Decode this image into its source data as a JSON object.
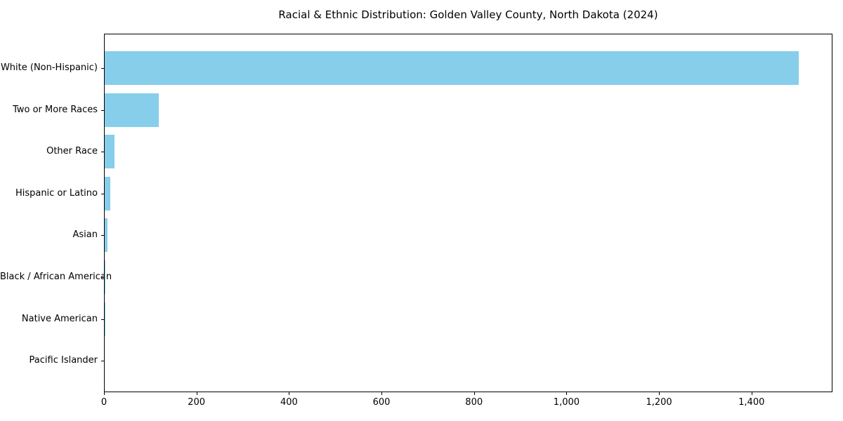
{
  "figure": {
    "background": "#ffffff"
  },
  "chart_data": {
    "type": "bar",
    "orientation": "horizontal",
    "title": "Racial & Ethnic Distribution: Golden Valley County, North Dakota (2024)",
    "categories": [
      "White (Non-Hispanic)",
      "Two or More Races",
      "Other Race",
      "Hispanic or Latino",
      "Asian",
      "Black / African American",
      "Native American",
      "Pacific Islander"
    ],
    "values": [
      1500,
      117,
      21,
      12,
      6,
      2,
      1,
      0
    ],
    "bar_color": "#87CEEB",
    "axis_color": "#000000",
    "xlabel": "",
    "ylabel": "",
    "xlim": [
      0,
      1575
    ],
    "x_ticks": [
      0,
      200,
      400,
      600,
      800,
      1000,
      1200,
      1400
    ],
    "x_tick_labels": [
      "0",
      "200",
      "400",
      "600",
      "800",
      "1,000",
      "1,200",
      "1,400"
    ],
    "grid": false,
    "legend_position": "none"
  }
}
